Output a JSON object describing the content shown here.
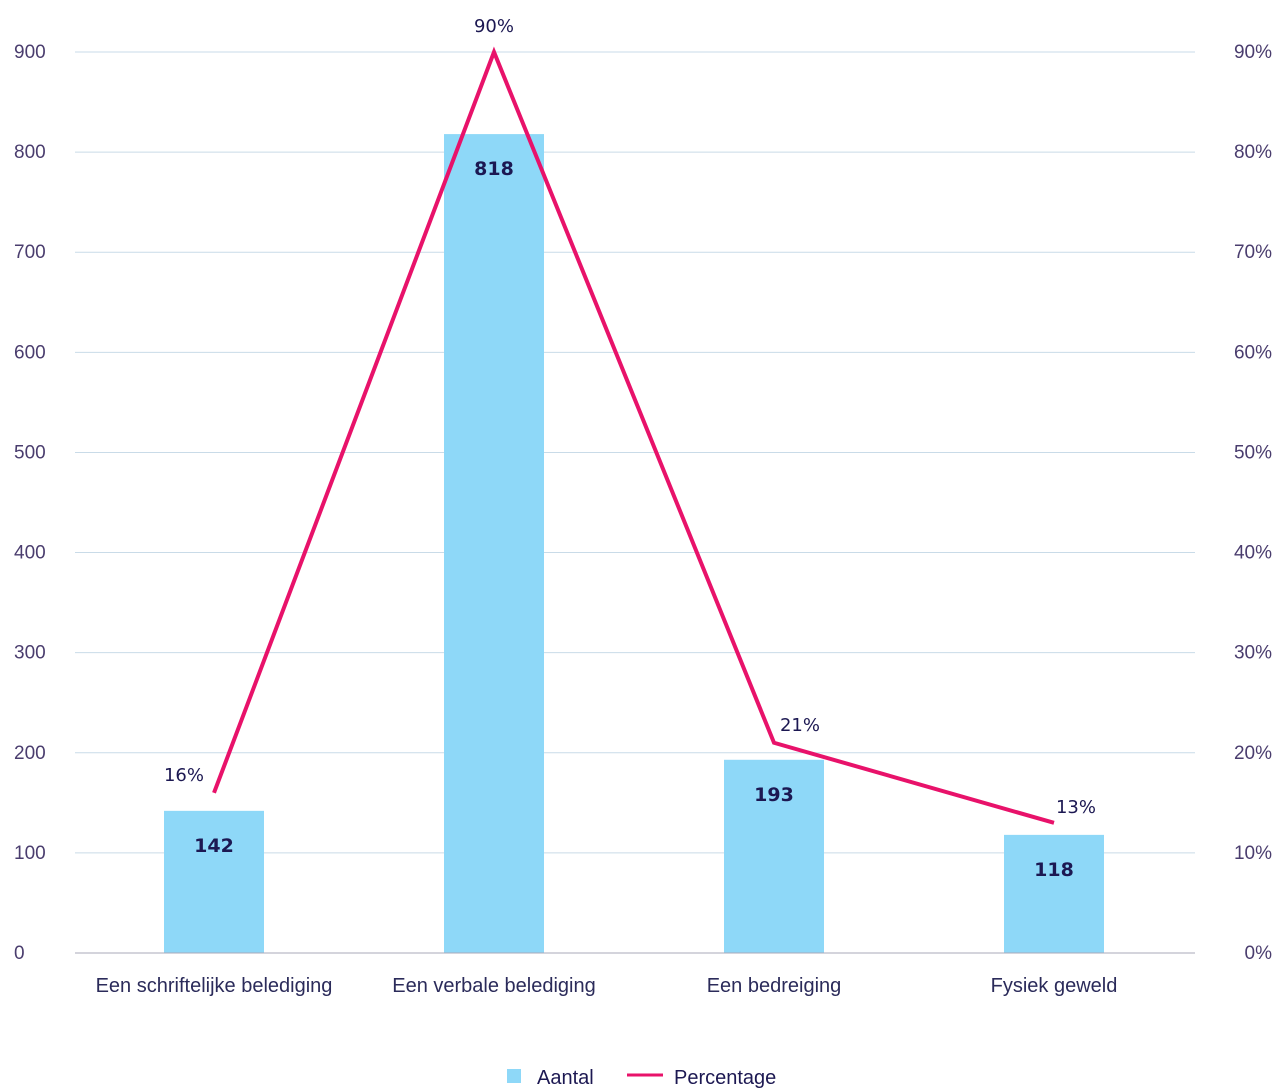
{
  "chart_data": {
    "type": "bar",
    "categories": [
      "Een schriftelijke belediging",
      "Een verbale belediging",
      "Een bedreiging",
      "Fysiek geweld"
    ],
    "series": [
      {
        "name": "Aantal",
        "type": "bar",
        "values": [
          142,
          818,
          193,
          118
        ],
        "labels": [
          "142",
          "818",
          "193",
          "118"
        ]
      },
      {
        "name": "Percentage",
        "type": "line",
        "values": [
          16,
          90,
          21,
          13
        ],
        "labels": [
          "16%",
          "90%",
          "21%",
          "13%"
        ]
      }
    ],
    "y_left": {
      "ylim": [
        0,
        900
      ],
      "ticks": [
        "0",
        "100",
        "200",
        "300",
        "400",
        "500",
        "600",
        "700",
        "800",
        "900"
      ]
    },
    "y_right": {
      "ylim": [
        0,
        90
      ],
      "ticks": [
        "0%",
        "10%",
        "20%",
        "30%",
        "40%",
        "50%",
        "60%",
        "70%",
        "80%",
        "90%"
      ]
    },
    "grid": true,
    "legend": {
      "position": "bottom",
      "items": [
        "Aantal",
        "Percentage"
      ]
    },
    "colors": {
      "bar": "#8ed8f8",
      "line": "#e8126a",
      "grid": "#c9dbe8",
      "text": "#1c1852"
    }
  }
}
